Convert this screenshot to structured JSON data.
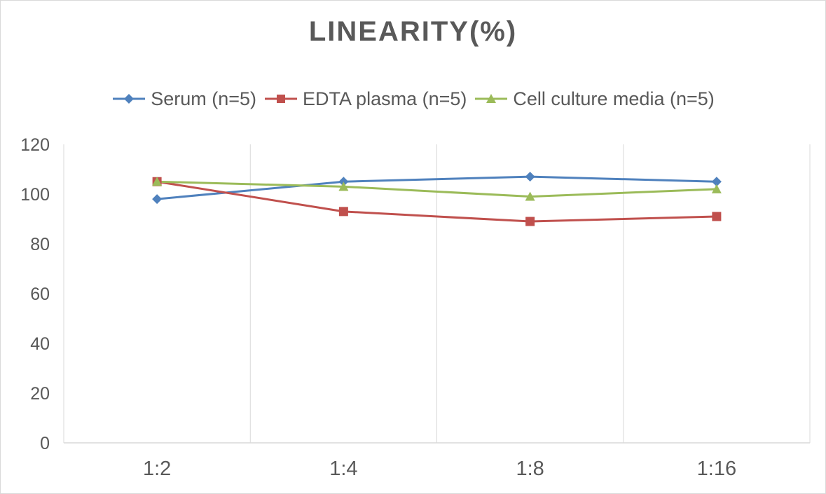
{
  "chart_data": {
    "type": "line",
    "title": "LINEARITY(%)",
    "categories": [
      "1:2",
      "1:4",
      "1:8",
      "1:16"
    ],
    "series": [
      {
        "name": "Serum (n=5)",
        "values": [
          98,
          105,
          107,
          105
        ],
        "color": "#4F81BD",
        "marker": "diamond"
      },
      {
        "name": "EDTA plasma (n=5)",
        "values": [
          105,
          93,
          89,
          91
        ],
        "color": "#C0504D",
        "marker": "square"
      },
      {
        "name": "Cell culture media (n=5)",
        "values": [
          105,
          103,
          99,
          102
        ],
        "color": "#9BBB59",
        "marker": "triangle"
      }
    ],
    "ylim": [
      0,
      120
    ],
    "yticks": [
      "0",
      "20",
      "40",
      "60",
      "80",
      "100",
      "120"
    ],
    "xlabel": "",
    "ylabel": "",
    "grid": "vertical",
    "legend": "top-center"
  }
}
